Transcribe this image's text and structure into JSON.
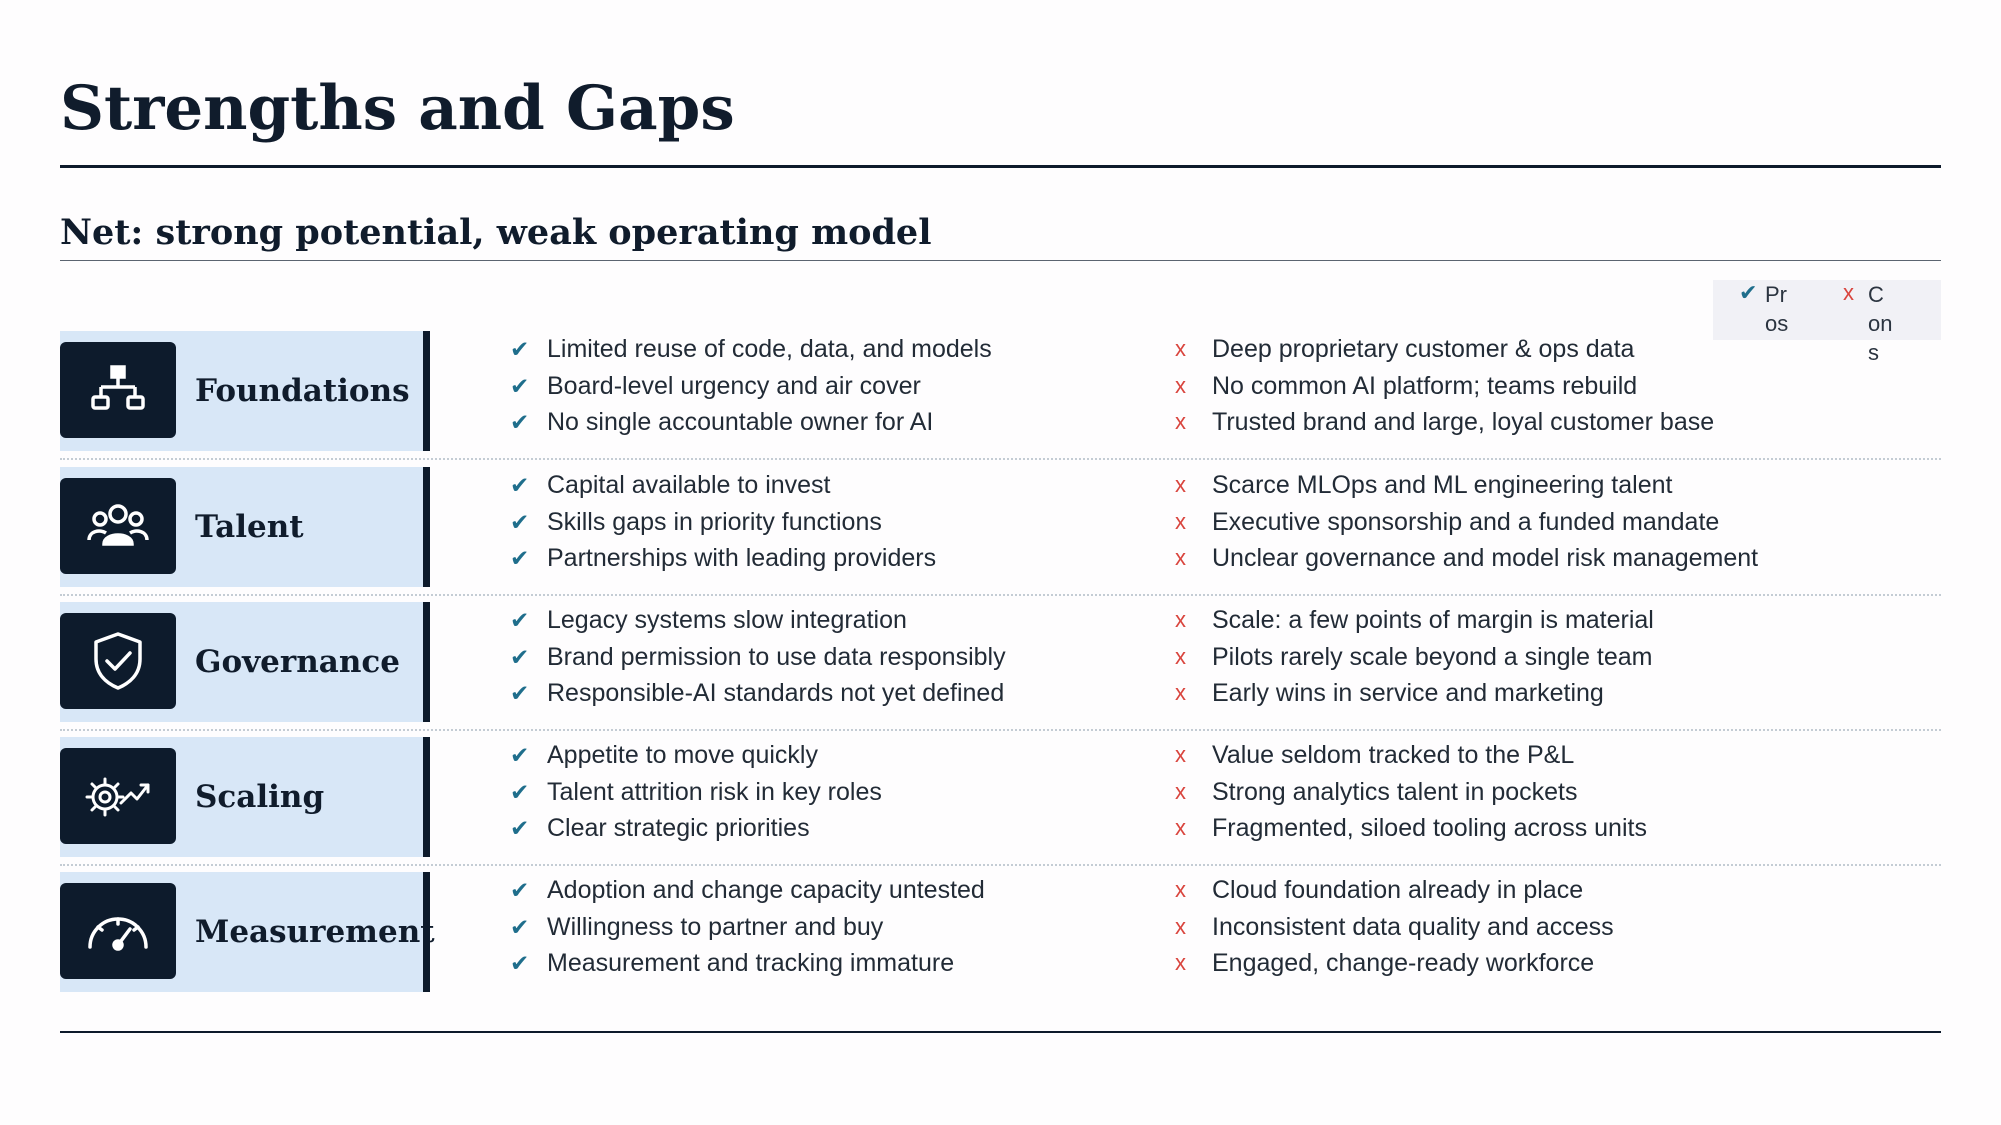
{
  "title": "Strengths and Gaps",
  "subtitle": "Net: strong potential, weak operating model",
  "legend": {
    "pros_label": "Pros",
    "cons_label": "Cons",
    "pros_mark": "✔",
    "cons_mark": "x"
  },
  "colors": {
    "accent_check": "#1f6e8c",
    "accent_cross": "#d9453e",
    "tile_bg": "#d8e7f7",
    "icon_bg": "#0d1b2c"
  },
  "rows": [
    {
      "category": "Foundations",
      "icon": "org-chart-icon",
      "pros": [
        "Limited reuse of code, data, and models",
        "Board-level urgency and air cover",
        "No single accountable owner for AI"
      ],
      "cons": [
        "Deep proprietary customer & ops data",
        "No common AI platform; teams rebuild",
        "Trusted brand and large, loyal customer base"
      ]
    },
    {
      "category": "Talent",
      "icon": "people-group-icon",
      "pros": [
        "Capital available to invest",
        "Skills gaps in priority functions",
        "Partnerships with leading providers"
      ],
      "cons": [
        "Scarce MLOps and ML engineering talent",
        "Executive sponsorship and a funded mandate",
        "Unclear governance and model risk management"
      ]
    },
    {
      "category": "Governance",
      "icon": "shield-check-icon",
      "pros": [
        "Legacy systems slow integration",
        "Brand permission to use data responsibly",
        "Responsible-AI standards not yet defined"
      ],
      "cons": [
        "Scale: a few points of margin is material",
        "Pilots rarely scale beyond a single team",
        "Early wins in service and marketing"
      ]
    },
    {
      "category": "Scaling",
      "icon": "gear-trend-icon",
      "pros": [
        "Appetite to move quickly",
        "Talent attrition risk in key roles",
        "Clear strategic priorities"
      ],
      "cons": [
        "Value seldom tracked to the P&L",
        "Strong analytics talent in pockets",
        "Fragmented, siloed tooling across units"
      ]
    },
    {
      "category": "Measurement",
      "icon": "gauge-icon",
      "pros": [
        "Adoption and change capacity untested",
        "Willingness to partner and buy",
        "Measurement and tracking immature"
      ],
      "cons": [
        "Cloud foundation already in place",
        "Inconsistent data quality and access",
        "Engaged, change-ready workforce"
      ]
    }
  ]
}
